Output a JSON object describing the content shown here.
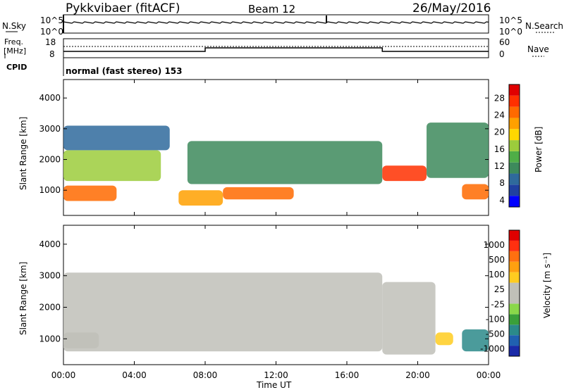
{
  "header": {
    "radar": "Pykkvibaer (fitACF)",
    "beam": "Beam 12",
    "date": "26/May/2016"
  },
  "status_panel": {
    "nsky_label": "N.Sky",
    "nsearch_label": "N.Search",
    "nsky_ticks": [
      "10^5",
      "10^0"
    ],
    "freq_label_1": "Freq.",
    "freq_label_2": "[MHz]",
    "freq_ticks": [
      "18",
      "8"
    ],
    "nave_label": "Nave",
    "nave_ticks": [
      "60",
      "0"
    ],
    "cpid_label": "CPID",
    "cpid_text": "normal (fast stereo) 153"
  },
  "axes": {
    "xlabel": "Time UT",
    "ylabel": "Slant Range [km]",
    "x_ticks": [
      "00:00",
      "04:00",
      "08:00",
      "12:00",
      "16:00",
      "20:00",
      "00:00"
    ],
    "y_ticks": [
      "1000",
      "2000",
      "3000",
      "4000"
    ]
  },
  "colorbars": {
    "power_label": "Power [dB]",
    "power_ticks": [
      "28",
      "24",
      "20",
      "16",
      "12",
      "8",
      "4"
    ],
    "power_colors": [
      "#0000ff",
      "#2040a0",
      "#2f6a9c",
      "#3d8a5c",
      "#4fae47",
      "#9ccc3c",
      "#ffd700",
      "#ffa000",
      "#ff6a00",
      "#ff3000",
      "#e00000"
    ],
    "velocity_label": "Velocity [m s⁻¹]",
    "velocity_ticks": [
      "1000",
      "500",
      "100",
      "25",
      "-25",
      "-100",
      "-500",
      "-1000"
    ],
    "velocity_colors": [
      "#1a2aa8",
      "#2060b0",
      "#2b8a8a",
      "#3aa03a",
      "#8ad84a",
      "#c0c0b8",
      "#c0c0b8",
      "#ffcc20",
      "#ffa010",
      "#ff7010",
      "#ff3010",
      "#e00000"
    ]
  },
  "chart_data": [
    {
      "type": "heatmap",
      "title": "",
      "xlabel": "",
      "ylabel": "Slant Range [km]",
      "xlim": [
        "00:00",
        "24:00"
      ],
      "ylim": [
        180,
        4600
      ],
      "value_label": "Power [dB]",
      "value_range": [
        0,
        30
      ],
      "bands": [
        {
          "start": "00:00",
          "end": "03:00",
          "range": [
            650,
            1150
          ],
          "value": 22
        },
        {
          "start": "00:00",
          "end": "05:30",
          "range": [
            1300,
            2300
          ],
          "value": 14
        },
        {
          "start": "00:00",
          "end": "06:00",
          "range": [
            2300,
            3100
          ],
          "value": 8
        },
        {
          "start": "06:30",
          "end": "09:00",
          "range": [
            500,
            1000
          ],
          "value": 20
        },
        {
          "start": "07:00",
          "end": "18:00",
          "range": [
            1200,
            2600
          ],
          "value": 10
        },
        {
          "start": "09:00",
          "end": "13:00",
          "range": [
            700,
            1100
          ],
          "value": 22
        },
        {
          "start": "18:00",
          "end": "20:30",
          "range": [
            1300,
            1800
          ],
          "value": 25
        },
        {
          "start": "20:30",
          "end": "24:00",
          "range": [
            1400,
            3200
          ],
          "value": 10
        },
        {
          "start": "22:30",
          "end": "24:00",
          "range": [
            700,
            1200
          ],
          "value": 24
        }
      ]
    },
    {
      "type": "heatmap",
      "title": "",
      "xlabel": "Time UT",
      "ylabel": "Slant Range [km]",
      "xlim": [
        "00:00",
        "24:00"
      ],
      "ylim": [
        180,
        4600
      ],
      "value_label": "Velocity [m s⁻¹]",
      "value_range": [
        -1000,
        1000
      ],
      "bands": [
        {
          "start": "00:00",
          "end": "02:00",
          "range": [
            700,
            1200
          ],
          "value": -150
        },
        {
          "start": "00:00",
          "end": "18:00",
          "range": [
            600,
            3100
          ],
          "value": 0
        },
        {
          "start": "18:00",
          "end": "21:00",
          "range": [
            500,
            2800
          ],
          "value": 0
        },
        {
          "start": "21:00",
          "end": "22:00",
          "range": [
            800,
            1200
          ],
          "value": 300
        },
        {
          "start": "22:30",
          "end": "24:00",
          "range": [
            600,
            1300
          ],
          "value": -600
        }
      ]
    }
  ]
}
